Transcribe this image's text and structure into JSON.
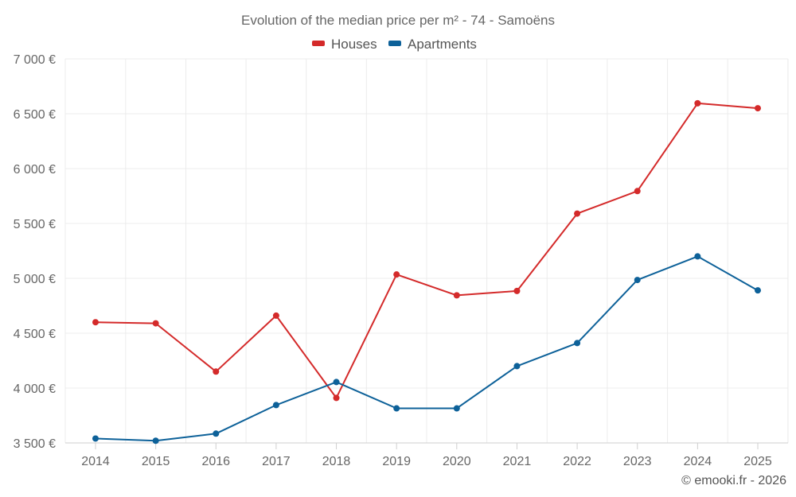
{
  "chart_data": {
    "type": "line",
    "title": "Evolution of the median price per m² - 74 - Samoëns",
    "categories": [
      "2014",
      "2015",
      "2016",
      "2017",
      "2018",
      "2019",
      "2020",
      "2021",
      "2022",
      "2023",
      "2024",
      "2025"
    ],
    "series": [
      {
        "name": "Houses",
        "color": "#d42a2a",
        "values": [
          4600,
          4590,
          4150,
          4660,
          3910,
          5035,
          4845,
          4885,
          5590,
          5795,
          6595,
          6550
        ]
      },
      {
        "name": "Apartments",
        "color": "#0d6199",
        "values": [
          3540,
          3520,
          3585,
          3845,
          4055,
          3815,
          3815,
          4200,
          4410,
          4985,
          5200,
          4890
        ]
      }
    ],
    "ylim": [
      3500,
      7000
    ],
    "yticks": [
      3500,
      4000,
      4500,
      5000,
      5500,
      6000,
      6500,
      7000
    ],
    "ytick_labels": [
      "3 500 €",
      "4 000 €",
      "4 500 €",
      "5 000 €",
      "5 500 €",
      "6 000 €",
      "6 500 €",
      "7 000 €"
    ],
    "xlabel": "",
    "ylabel": "",
    "legend_position": "top-center",
    "grid": true
  },
  "credit": "© emooki.fr - 2026"
}
